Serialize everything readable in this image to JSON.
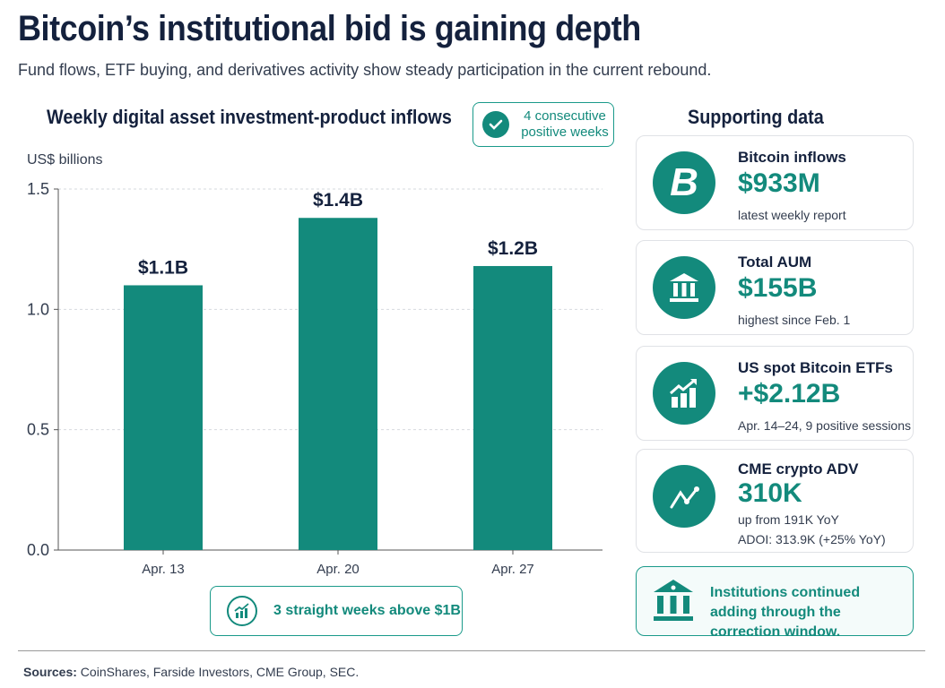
{
  "header": {
    "title": "Bitcoin’s institutional bid is gaining depth",
    "subtitle": "Fund flows, ETF buying, and derivatives activity show steady participation in the current rebound."
  },
  "chart_data": {
    "type": "bar",
    "title": "Weekly digital asset investment-product inflows",
    "ylabel": "US$ billions",
    "xlabel": "",
    "categories": [
      "Apr. 13",
      "Apr. 20",
      "Apr. 27"
    ],
    "values": [
      1.1,
      1.38,
      1.18
    ],
    "data_labels": [
      "$1.1B",
      "$1.4B",
      "$1.2B"
    ],
    "ylim": [
      0,
      1.5
    ],
    "yticks": [
      "0.0",
      "0.5",
      "1.0",
      "1.5"
    ],
    "grid": true,
    "bar_color": "#138a7c"
  },
  "badges": {
    "top": "4 consecutive positive weeks",
    "top_icon": "check-icon",
    "bottom": "3 straight weeks above $1B",
    "bottom_icon": "growth-chart-icon"
  },
  "sidebar": {
    "title": "Supporting data",
    "cards": [
      {
        "label": "Bitcoin inflows",
        "value": "$933M",
        "note": "latest weekly report",
        "icon": "bitcoin-icon"
      },
      {
        "label": "Total AUM",
        "value": "$155B",
        "note": "highest since Feb. 1",
        "icon": "bank-icon"
      },
      {
        "label": "US spot Bitcoin ETFs",
        "value": "+$2.12B",
        "note": "Apr. 14–24, 9 positive sessions",
        "icon": "growth-chart-icon"
      },
      {
        "label": "CME crypto ADV",
        "value": "310K",
        "note": "up from 191K YoY",
        "note2": "ADOI: 313.9K (+25% YoY)",
        "icon": "line-chart-icon"
      }
    ],
    "callout": "Institutions continued adding through the correction window.",
    "callout_icon": "bank-icon"
  },
  "footer": {
    "sources_label": "Sources:",
    "sources": " CoinShares, Farside Investors, CME Group, SEC."
  },
  "colors": {
    "accent": "#138a7c",
    "text": "#14213d"
  }
}
